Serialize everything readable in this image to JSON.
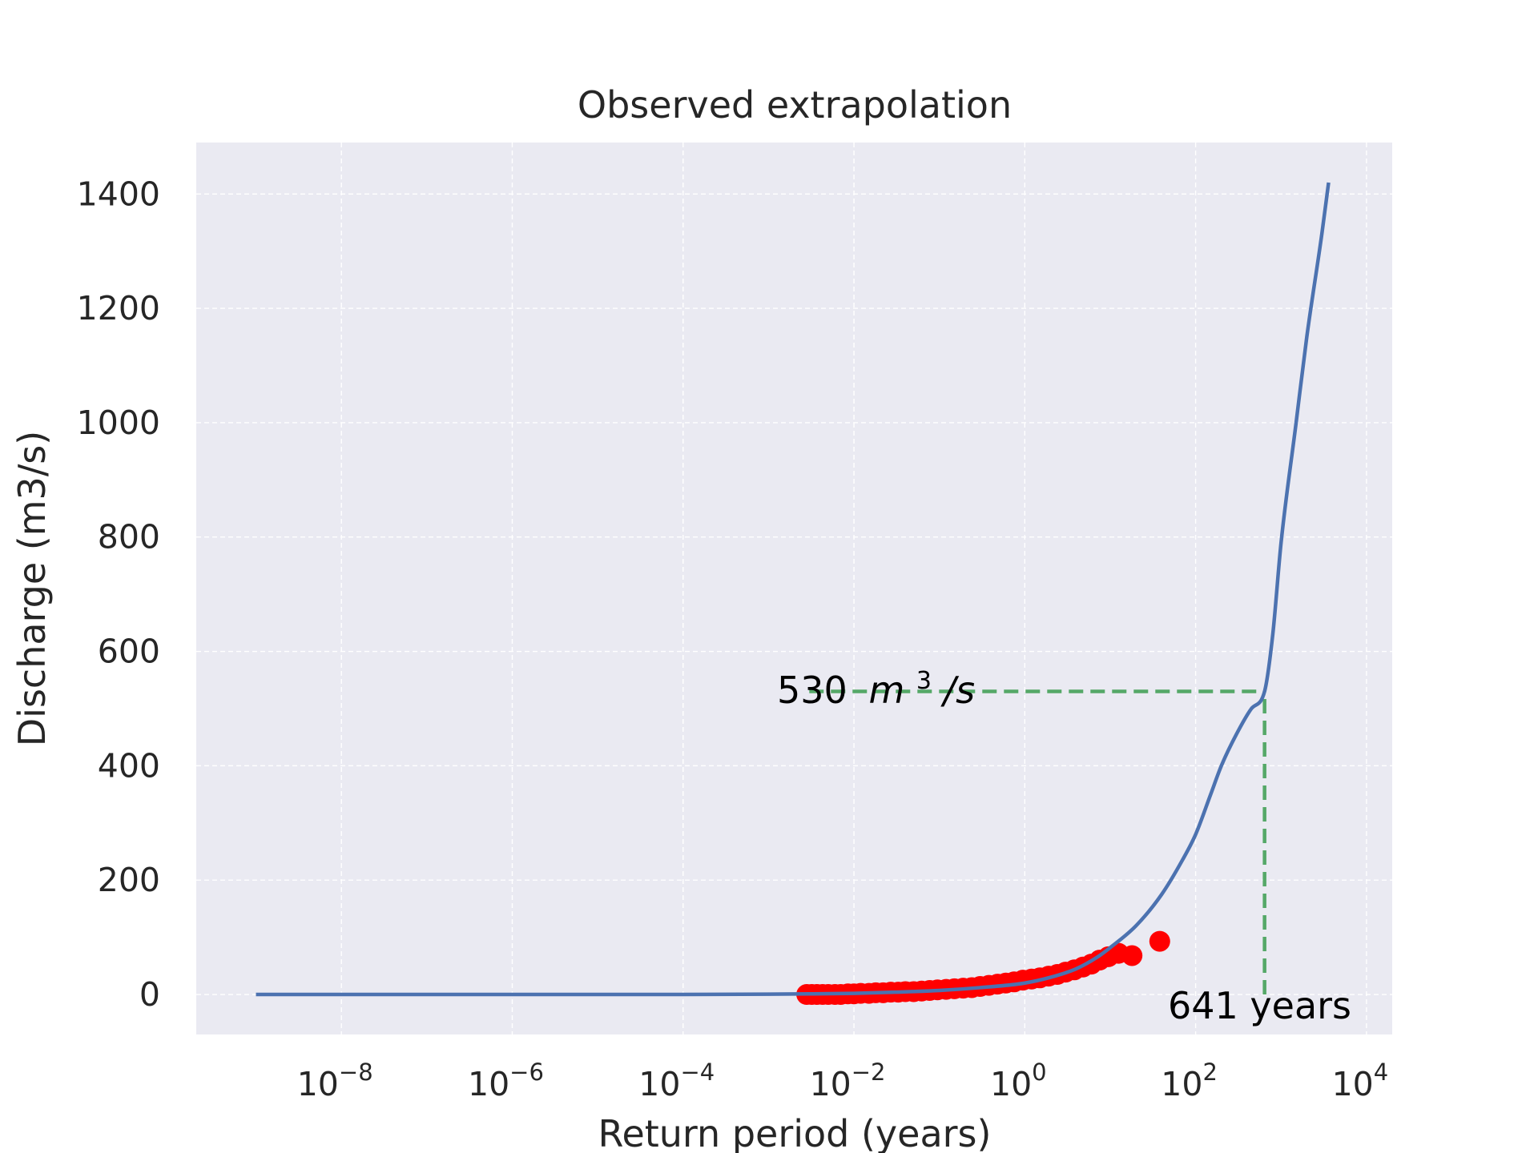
{
  "chart_data": {
    "type": "line",
    "title": "Observed extrapolation",
    "xlabel": "Return period (years)",
    "ylabel": "Discharge (m3/s)",
    "x_scale": "log",
    "xlim": [
      2e-10,
      20000.0
    ],
    "ylim": [
      -70,
      1490
    ],
    "grid": true,
    "x_ticks": [
      {
        "base": "10",
        "exp": "−8",
        "value": 1e-08
      },
      {
        "base": "10",
        "exp": "−6",
        "value": 1e-06
      },
      {
        "base": "10",
        "exp": "−4",
        "value": 0.0001
      },
      {
        "base": "10",
        "exp": "−2",
        "value": 0.01
      },
      {
        "base": "10",
        "exp": "0",
        "value": 1
      },
      {
        "base": "10",
        "exp": "2",
        "value": 100
      },
      {
        "base": "10",
        "exp": "4",
        "value": 10000
      }
    ],
    "y_ticks": [
      "0",
      "200",
      "400",
      "600",
      "800",
      "1000",
      "1200",
      "1400"
    ],
    "series": [
      {
        "kind": "line",
        "color": "#4c72b0",
        "x": [
          1e-09,
          1e-07,
          1e-05,
          0.001,
          0.003,
          0.01,
          0.03,
          0.1,
          0.3,
          1,
          2,
          4,
          7,
          10,
          20,
          40,
          70,
          100,
          150,
          200,
          300,
          450,
          641,
          800,
          1000,
          1500,
          2000,
          3000,
          3600
        ],
        "y": [
          0,
          0,
          0,
          0.5,
          1,
          2,
          4,
          7,
          12,
          20,
          30,
          45,
          65,
          82,
          120,
          175,
          235,
          280,
          350,
          400,
          455,
          500,
          530,
          630,
          790,
          1000,
          1150,
          1330,
          1420
        ]
      },
      {
        "kind": "scatter",
        "color": "#ff0000",
        "x": [
          0.0028,
          0.0032,
          0.0037,
          0.0043,
          0.005,
          0.006,
          0.007,
          0.0085,
          0.01,
          0.012,
          0.015,
          0.018,
          0.022,
          0.027,
          0.033,
          0.04,
          0.05,
          0.062,
          0.077,
          0.095,
          0.12,
          0.15,
          0.19,
          0.24,
          0.3,
          0.38,
          0.48,
          0.6,
          0.75,
          0.95,
          1.2,
          1.5,
          1.9,
          2.4,
          3.0,
          3.8,
          4.8,
          6.0,
          7.5,
          9.5,
          12.5,
          18,
          38
        ],
        "y": [
          0,
          0,
          0,
          0,
          0,
          0,
          0,
          1,
          1,
          2,
          2,
          3,
          3,
          4,
          4,
          5,
          5,
          6,
          7,
          8,
          9,
          10,
          11,
          12,
          14,
          16,
          18,
          20,
          22,
          25,
          27,
          29,
          32,
          35,
          39,
          43,
          48,
          53,
          60,
          66,
          72,
          68,
          93
        ]
      }
    ],
    "annotations": [
      {
        "kind": "hline",
        "color": "#55a868",
        "y": 530,
        "x_from": 0.003,
        "x_to": 641
      },
      {
        "kind": "vline",
        "color": "#55a868",
        "x": 641,
        "y_from": 0,
        "y_to": 530
      },
      {
        "kind": "text",
        "value": "530",
        "unit_base": "m",
        "unit_exp": "3",
        "unit_tail": "/s"
      },
      {
        "kind": "text",
        "value": "641 years"
      }
    ]
  }
}
